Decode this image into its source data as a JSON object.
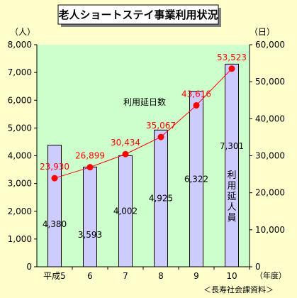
{
  "title": "老人ショートステイ事業利用状況",
  "unit_left": "（人）",
  "unit_right": "（日）",
  "x_unit": "（年度）",
  "source": "＜長寿社会課資料＞",
  "series_line_label": "利用延日数",
  "series_bar_label_chars": [
    "利",
    "用",
    "延",
    "人",
    "員"
  ],
  "colors": {
    "plot_bg": "#ccffcc",
    "bar": "#ccccff",
    "line": "#ff0000",
    "line_label": "#ff0000"
  },
  "chart_data": {
    "type": "bar",
    "categories": [
      "平成5",
      "6",
      "7",
      "8",
      "9",
      "10"
    ],
    "series": [
      {
        "name": "利用延人員",
        "type": "bar",
        "axis": "left",
        "values": [
          4380,
          3593,
          4002,
          4925,
          6322,
          7301
        ],
        "labels": [
          "4,380",
          "3,593",
          "4,002",
          "4,925",
          "6,322",
          "7,301"
        ]
      },
      {
        "name": "利用延日数",
        "type": "line",
        "axis": "right",
        "values": [
          23930,
          26899,
          30434,
          35067,
          43616,
          53523
        ],
        "labels": [
          "23,930",
          "26,899",
          "30,434",
          "35,067",
          "43,616",
          "53,523"
        ]
      }
    ],
    "y_left": {
      "min": 0,
      "max": 8000,
      "ticks": [
        "0",
        "1,000",
        "2,000",
        "3,000",
        "4,000",
        "5,000",
        "6,000",
        "7,000",
        "8,000"
      ]
    },
    "y_right": {
      "min": 0,
      "max": 60000,
      "ticks": [
        "0",
        "10,000",
        "20,000",
        "30,000",
        "40,000",
        "50,000",
        "60,000"
      ]
    },
    "grid": false,
    "legend": "none"
  }
}
